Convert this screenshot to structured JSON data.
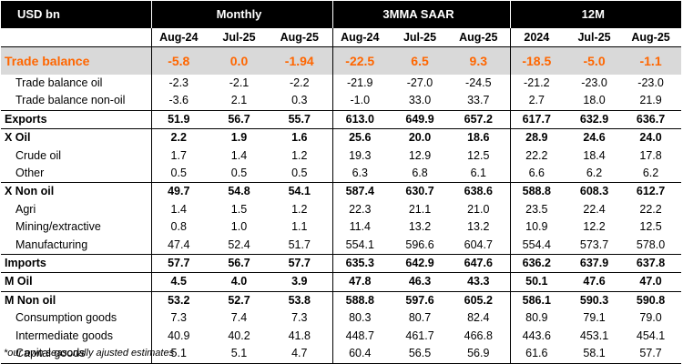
{
  "header": {
    "unit_label": "USD bn",
    "groups": [
      "Monthly",
      "3MMA SAAR",
      "12M"
    ],
    "columns": [
      "Aug-24",
      "Jul-25",
      "Aug-25",
      "Aug-24",
      "Jul-25",
      "Aug-25",
      "2024",
      "Jul-25",
      "Aug-25"
    ]
  },
  "rows": [
    {
      "label": "Trade balance",
      "values": [
        "-5.8",
        "0.0",
        "-1.94",
        "-22.5",
        "6.5",
        "9.3",
        "-18.5",
        "-5.0",
        "-1.1"
      ]
    },
    {
      "label": "Trade balance oil",
      "values": [
        "-2.3",
        "-2.1",
        "-2.2",
        "-21.9",
        "-27.0",
        "-24.5",
        "-21.2",
        "-23.0",
        "-23.0"
      ]
    },
    {
      "label": "Trade balance non-oil",
      "values": [
        "-3.6",
        "2.1",
        "0.3",
        "-1.0",
        "33.0",
        "33.7",
        "2.7",
        "18.0",
        "21.9"
      ]
    },
    {
      "label": "Exports",
      "values": [
        "51.9",
        "56.7",
        "55.7",
        "613.0",
        "649.9",
        "657.2",
        "617.7",
        "632.9",
        "636.7"
      ]
    },
    {
      "label": "X Oil",
      "values": [
        "2.2",
        "1.9",
        "1.6",
        "25.6",
        "20.0",
        "18.6",
        "28.9",
        "24.6",
        "24.0"
      ]
    },
    {
      "label": "Crude oil",
      "values": [
        "1.7",
        "1.4",
        "1.2",
        "19.3",
        "12.9",
        "12.5",
        "22.2",
        "18.4",
        "17.8"
      ]
    },
    {
      "label": "Other",
      "values": [
        "0.5",
        "0.5",
        "0.5",
        "6.3",
        "6.8",
        "6.1",
        "6.6",
        "6.2",
        "6.2"
      ]
    },
    {
      "label": "X Non oil",
      "values": [
        "49.7",
        "54.8",
        "54.1",
        "587.4",
        "630.7",
        "638.6",
        "588.8",
        "608.3",
        "612.7"
      ]
    },
    {
      "label": "Agri",
      "values": [
        "1.4",
        "1.5",
        "1.2",
        "22.3",
        "21.1",
        "21.0",
        "23.5",
        "22.4",
        "22.2"
      ]
    },
    {
      "label": "Mining/extractive",
      "values": [
        "0.8",
        "1.0",
        "1.1",
        "11.4",
        "13.2",
        "13.2",
        "10.9",
        "12.2",
        "12.5"
      ]
    },
    {
      "label": "Manufacturing",
      "values": [
        "47.4",
        "52.4",
        "51.7",
        "554.1",
        "596.6",
        "604.7",
        "554.4",
        "573.7",
        "578.0"
      ]
    },
    {
      "label": "Imports",
      "values": [
        "57.7",
        "56.7",
        "57.7",
        "635.3",
        "642.9",
        "647.6",
        "636.2",
        "637.9",
        "637.8"
      ]
    },
    {
      "label": "M Oil",
      "values": [
        "4.5",
        "4.0",
        "3.9",
        "47.8",
        "46.3",
        "43.3",
        "50.1",
        "47.6",
        "47.0"
      ]
    },
    {
      "label": "M Non oil",
      "values": [
        "53.2",
        "52.7",
        "53.8",
        "588.8",
        "597.6",
        "605.2",
        "586.1",
        "590.3",
        "590.8"
      ]
    },
    {
      "label": "Consumption goods",
      "values": [
        "7.3",
        "7.4",
        "7.3",
        "80.3",
        "80.7",
        "82.4",
        "80.9",
        "79.1",
        "79.0"
      ]
    },
    {
      "label": "Intermediate goods",
      "values": [
        "40.9",
        "40.2",
        "41.8",
        "448.7",
        "461.7",
        "466.8",
        "443.6",
        "453.1",
        "454.1"
      ]
    },
    {
      "label": "Capital goods",
      "values": [
        "5.1",
        "5.1",
        "4.7",
        "60.4",
        "56.5",
        "56.9",
        "61.6",
        "58.1",
        "57.7"
      ]
    }
  ],
  "footnote": "*our own seasonally ajusted estimates",
  "colors": {
    "header_bg": "#000000",
    "header_text": "#ffffff",
    "highlight_text": "#ff6600",
    "highlight_bg": "#d9d9d9"
  }
}
